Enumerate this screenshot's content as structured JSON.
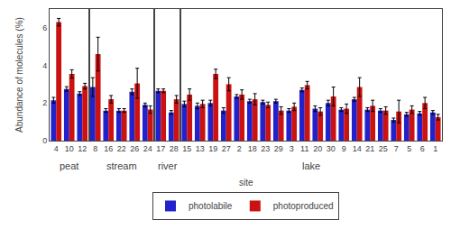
{
  "chart_data": {
    "type": "bar",
    "ylabel": "Abundance of molecules (%)",
    "xlabel": "site",
    "ylim": [
      0,
      7.0
    ],
    "yticks": [
      0,
      2,
      4,
      6
    ],
    "grid": false,
    "legend": "bottom",
    "groups": [
      {
        "name": "peat",
        "categories": [
          "4",
          "10",
          "12"
        ],
        "series": [
          {
            "name": "photolabile",
            "color": "#2222cc",
            "values": [
              2.15,
              2.75,
              2.5
            ],
            "errors": [
              0.15,
              0.12,
              0.1
            ]
          },
          {
            "name": "photoproduced",
            "color": "#cc1111",
            "values": [
              6.3,
              3.55,
              2.9
            ],
            "errors": [
              0.2,
              0.22,
              0.15
            ]
          }
        ]
      },
      {
        "name": "stream",
        "categories": [
          "8",
          "16",
          "22",
          "26",
          "24"
        ],
        "series": [
          {
            "name": "photolabile",
            "color": "#2222cc",
            "values": [
              2.85,
              1.6,
              1.6,
              2.6,
              1.9
            ],
            "errors": [
              0.5,
              0.1,
              0.1,
              0.15,
              0.1
            ]
          },
          {
            "name": "photoproduced",
            "color": "#cc1111",
            "values": [
              4.6,
              2.2,
              1.6,
              3.05,
              1.65
            ],
            "errors": [
              0.9,
              0.2,
              0.1,
              0.8,
              0.2
            ]
          }
        ]
      },
      {
        "name": "river",
        "categories": [
          "17",
          "28"
        ],
        "series": [
          {
            "name": "photolabile",
            "color": "#2222cc",
            "values": [
              2.65,
              1.5
            ],
            "errors": [
              0.1,
              0.1
            ]
          },
          {
            "name": "photoproduced",
            "color": "#cc1111",
            "values": [
              2.65,
              2.2
            ],
            "errors": [
              0.1,
              0.2
            ]
          }
        ]
      },
      {
        "name": "lake",
        "categories": [
          "15",
          "13",
          "19",
          "27",
          "2",
          "18",
          "23",
          "29",
          "3",
          "11",
          "20",
          "30",
          "9",
          "14",
          "21",
          "25",
          "7",
          "5",
          "6",
          "1"
        ],
        "series": [
          {
            "name": "photolabile",
            "color": "#2222cc",
            "values": [
              1.95,
              1.85,
              2.0,
              1.6,
              2.35,
              2.1,
              2.05,
              2.1,
              1.6,
              2.7,
              1.7,
              2.0,
              1.65,
              2.2,
              1.65,
              1.6,
              1.1,
              1.4,
              1.45,
              1.5
            ],
            "errors": [
              0.15,
              0.15,
              0.15,
              0.15,
              0.1,
              0.1,
              0.1,
              0.1,
              0.1,
              0.1,
              0.15,
              0.15,
              0.1,
              0.1,
              0.1,
              0.1,
              0.1,
              0.1,
              0.1,
              0.1
            ]
          },
          {
            "name": "photoproduced",
            "color": "#cc1111",
            "values": [
              2.45,
              1.95,
              3.55,
              3.0,
              2.45,
              2.2,
              1.9,
              1.6,
              1.8,
              2.95,
              1.55,
              2.35,
              1.7,
              2.85,
              1.85,
              1.6,
              1.55,
              1.65,
              2.0,
              1.25
            ],
            "errors": [
              0.3,
              0.2,
              0.25,
              0.35,
              0.25,
              0.3,
              0.15,
              0.2,
              0.2,
              0.2,
              0.2,
              0.5,
              0.25,
              0.5,
              0.3,
              0.2,
              0.6,
              0.2,
              0.3,
              0.15
            ]
          }
        ]
      }
    ]
  }
}
